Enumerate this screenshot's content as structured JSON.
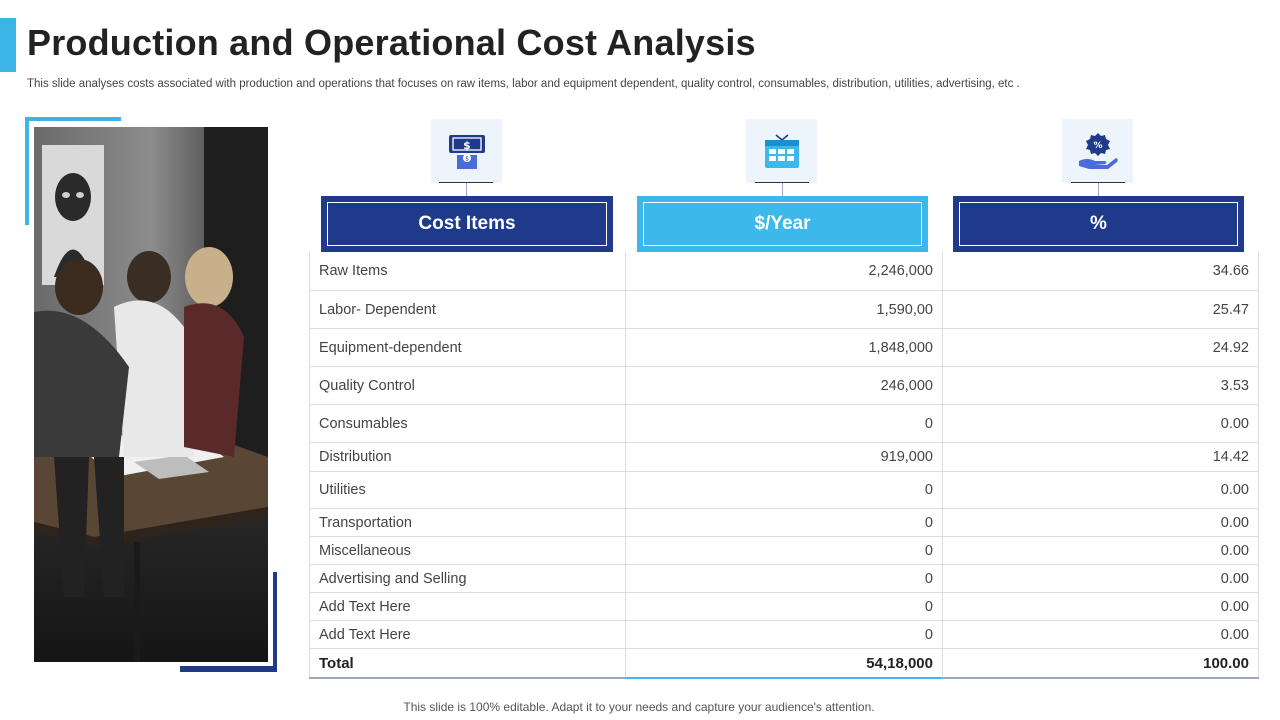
{
  "slide": {
    "title": "Production and Operational Cost Analysis",
    "subtitle": "This slide analyses costs associated with production and operations that focuses on raw items, labor and equipment dependent, quality control, consumables, distribution, utilities, advertising, etc .",
    "footer": "This slide is 100% editable. Adapt it to your needs and capture your audience's attention."
  },
  "colors": {
    "accent_light": "#3cb9ea",
    "accent_dark": "#1f3a8a"
  },
  "icons": [
    "money-bill-icon",
    "calendar-icon",
    "percent-hand-icon"
  ],
  "table": {
    "headers": [
      "Cost Items",
      "$/Year",
      "%"
    ],
    "rows": [
      [
        "Raw Items",
        "2,246,000",
        "34.66"
      ],
      [
        "Labor- Dependent",
        "1,590,00",
        "25.47"
      ],
      [
        "Equipment-dependent",
        "1,848,000",
        "24.92"
      ],
      [
        "Quality Control",
        "246,000",
        "3.53"
      ],
      [
        "Consumables",
        "0",
        "0.00"
      ],
      [
        "Distribution",
        "919,000",
        "14.42"
      ],
      [
        "Utilities",
        "0",
        "0.00"
      ],
      [
        "Transportation",
        "0",
        "0.00"
      ],
      [
        "Miscellaneous",
        "0",
        "0.00"
      ],
      [
        "Advertising and Selling",
        "0",
        "0.00"
      ],
      [
        "Add Text Here",
        "0",
        "0.00"
      ],
      [
        "Add Text Here",
        "0",
        "0.00"
      ]
    ],
    "total": [
      "Total",
      "54,18,000",
      "100.00"
    ]
  }
}
